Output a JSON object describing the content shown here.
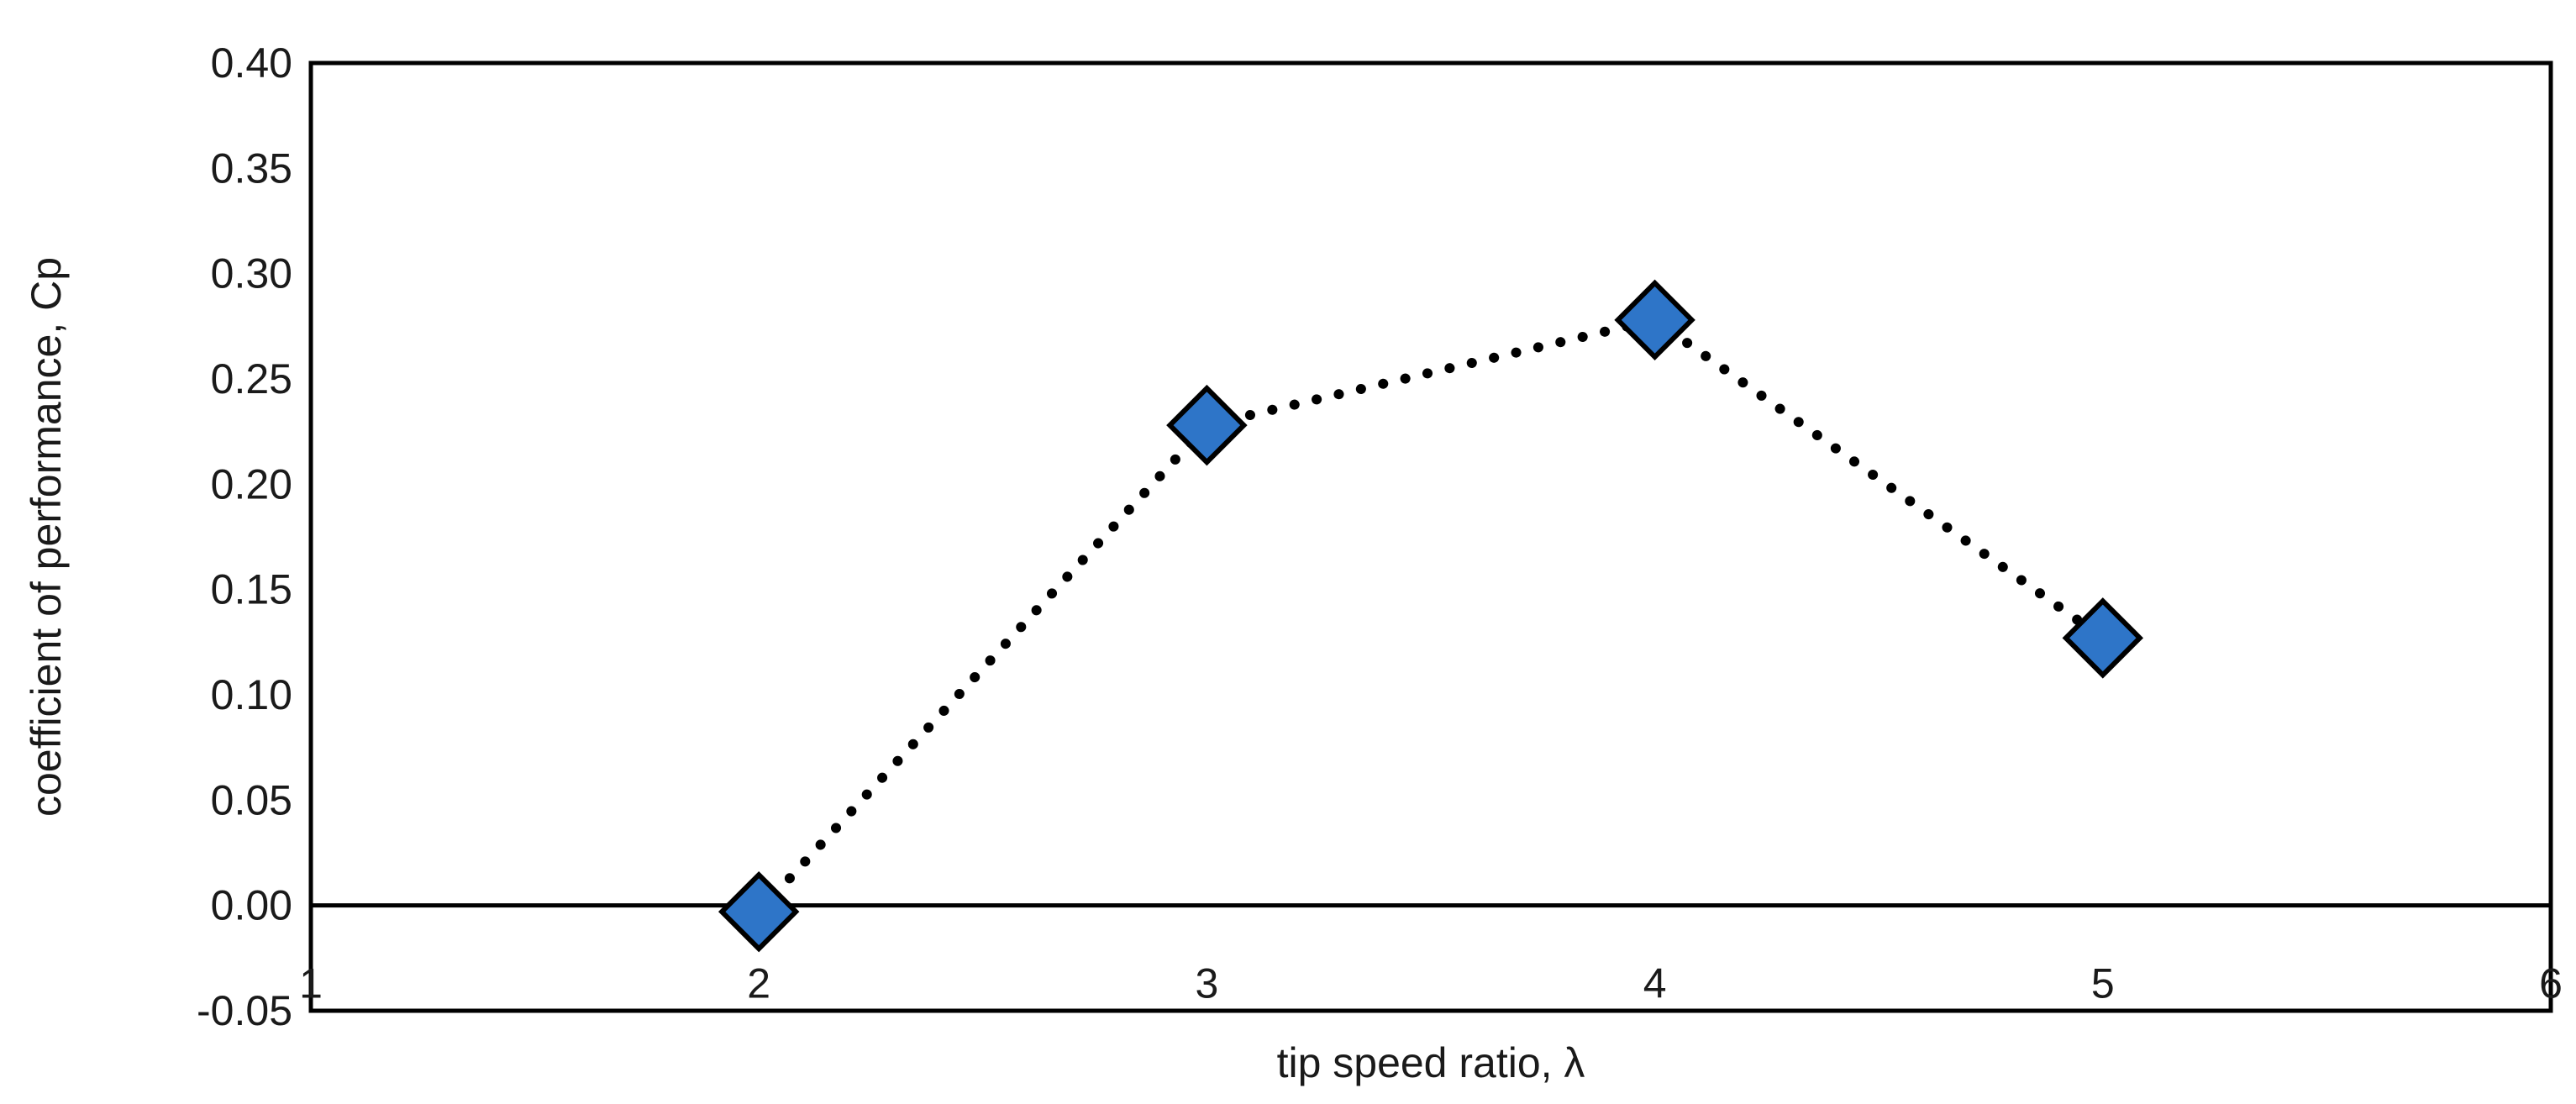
{
  "chart_data": {
    "type": "scatter",
    "title": "",
    "xlabel": "tip speed ratio, λ",
    "ylabel": "coefficient of performance, Cp",
    "xlim": [
      1,
      6
    ],
    "ylim": [
      -0.05,
      0.4
    ],
    "x_ticks": [
      "1",
      "2",
      "3",
      "4",
      "5",
      "6"
    ],
    "y_ticks": [
      "-0.05",
      "0.00",
      "0.05",
      "0.10",
      "0.15",
      "0.20",
      "0.25",
      "0.30",
      "0.35",
      "0.40"
    ],
    "grid": false,
    "legend": "none",
    "line_style": "dotted",
    "marker": "diamond",
    "marker_color": "#2E75C8",
    "series": [
      {
        "x": [
          2,
          3,
          4,
          5
        ],
        "y": [
          -0.003,
          0.228,
          0.278,
          0.127
        ]
      }
    ]
  }
}
